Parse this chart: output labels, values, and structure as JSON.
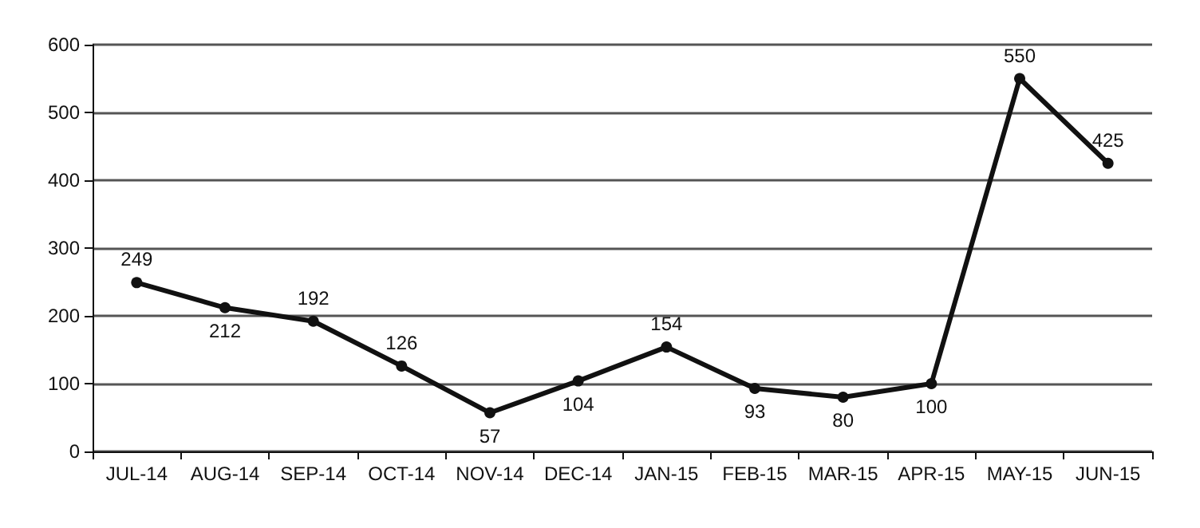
{
  "chart_data": {
    "type": "line",
    "categories": [
      "JUL-14",
      "AUG-14",
      "SEP-14",
      "OCT-14",
      "NOV-14",
      "DEC-14",
      "JAN-15",
      "FEB-15",
      "MAR-15",
      "APR-15",
      "MAY-15",
      "JUN-15"
    ],
    "series": [
      {
        "color": "#111111",
        "values": [
          249,
          212,
          192,
          126,
          57,
          104,
          154,
          93,
          80,
          100,
          550,
          425
        ]
      }
    ],
    "ylim": [
      0,
      600
    ],
    "yticks": [
      0,
      100,
      200,
      300,
      400,
      500,
      600
    ],
    "grid": "y",
    "marker": "circle",
    "line_style": "solid",
    "data_labels": true
  }
}
